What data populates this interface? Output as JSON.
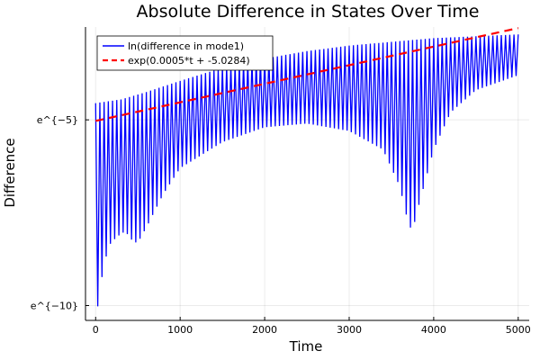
{
  "chart_data": {
    "type": "line",
    "title": "Absolute Difference in States Over Time",
    "xlabel": "Time",
    "ylabel": "Difference",
    "xlim": [
      -120,
      5130
    ],
    "ylim": [
      -10.4,
      -2.5
    ],
    "x_ticks": [
      0,
      1000,
      2000,
      3000,
      4000,
      5000
    ],
    "x_tick_labels": [
      "0",
      "1000",
      "2000",
      "3000",
      "4000",
      "5000"
    ],
    "y_ticks": [
      -5,
      -10
    ],
    "y_tick_labels": [
      "e^{−5}",
      "e^{−10}"
    ],
    "grid": true,
    "legend_position": "top-left",
    "series": [
      {
        "name": "ln(difference in mode1)",
        "color": "#0000ff",
        "style": "solid",
        "oscillation_period": 50,
        "upper_envelope": [
          [
            0,
            -4.55
          ],
          [
            300,
            -4.45
          ],
          [
            600,
            -4.25
          ],
          [
            1000,
            -3.95
          ],
          [
            1500,
            -3.6
          ],
          [
            2000,
            -3.35
          ],
          [
            2500,
            -3.15
          ],
          [
            3000,
            -3.0
          ],
          [
            3500,
            -2.9
          ],
          [
            4000,
            -2.8
          ],
          [
            4500,
            -2.75
          ],
          [
            5000,
            -2.7
          ]
        ],
        "lower_envelope": [
          [
            0,
            -10.3
          ],
          [
            15,
            -10.2
          ],
          [
            60,
            -9.4
          ],
          [
            150,
            -8.4
          ],
          [
            250,
            -8.15
          ],
          [
            350,
            -8.0
          ],
          [
            450,
            -8.3
          ],
          [
            500,
            -8.3
          ],
          [
            600,
            -7.9
          ],
          [
            800,
            -7.0
          ],
          [
            1000,
            -6.3
          ],
          [
            1500,
            -5.6
          ],
          [
            2000,
            -5.2
          ],
          [
            2500,
            -5.1
          ],
          [
            3000,
            -5.3
          ],
          [
            3400,
            -5.8
          ],
          [
            3600,
            -6.8
          ],
          [
            3700,
            -7.8
          ],
          [
            3750,
            -8.0
          ],
          [
            3800,
            -7.5
          ],
          [
            4000,
            -5.8
          ],
          [
            4200,
            -4.8
          ],
          [
            4500,
            -4.2
          ],
          [
            5000,
            -3.8
          ]
        ]
      },
      {
        "name": "exp(0.0005*t + -5.0284)",
        "color": "#ff0000",
        "style": "dashed",
        "slope": 0.0005,
        "intercept": -5.0284,
        "x_range": [
          0,
          5000
        ]
      }
    ]
  }
}
